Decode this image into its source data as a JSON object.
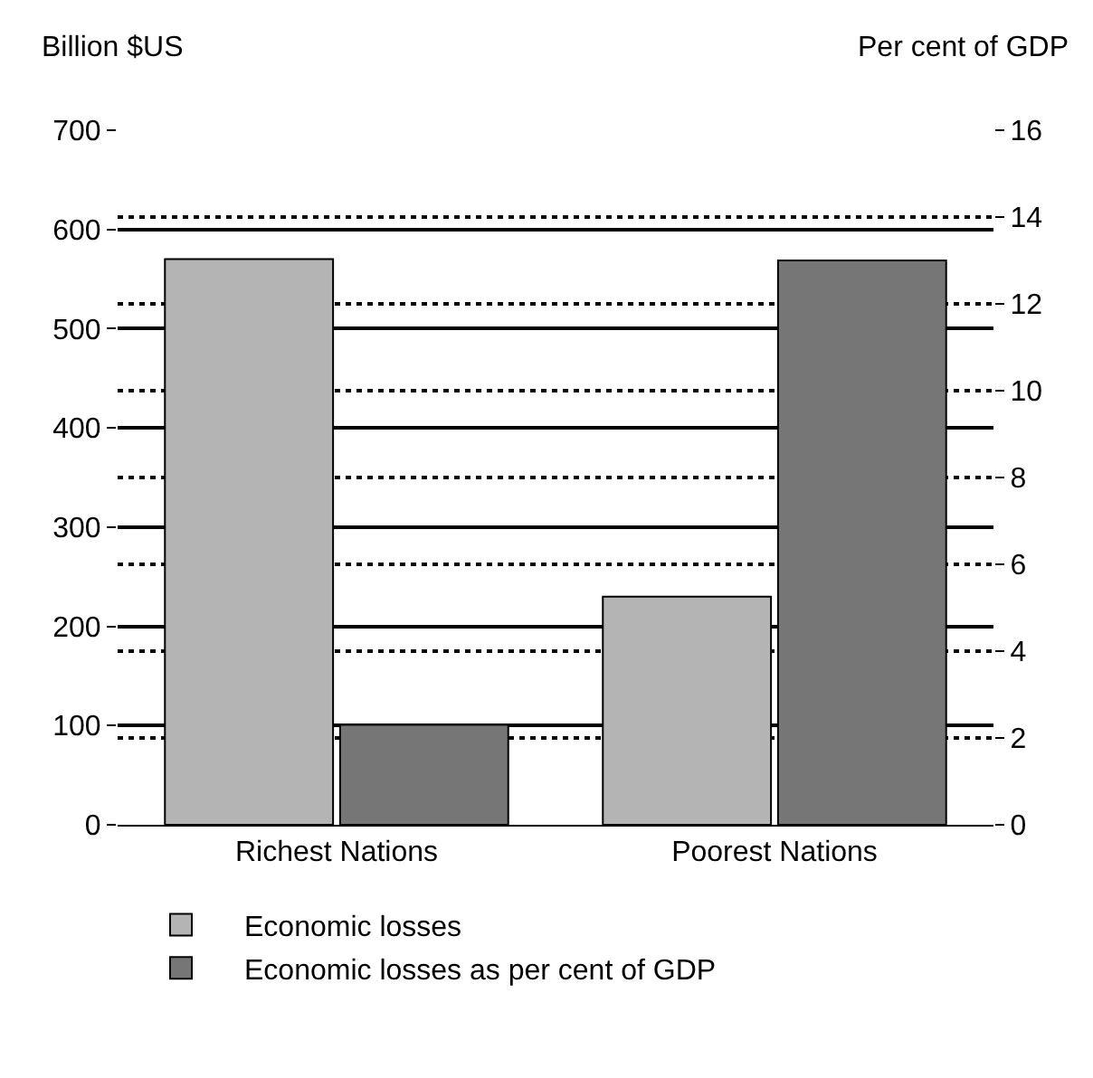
{
  "chart_data": {
    "type": "bar",
    "ylabel": "Billion $US",
    "y2label": "Per cent of GDP",
    "categories": [
      "Richest Nations",
      "Poorest Nations"
    ],
    "series": [
      {
        "name": "Economic losses",
        "color": "#b4b4b4",
        "values": [
          570,
          230
        ]
      },
      {
        "name": "Economic losses as per cent of GDP",
        "color": "#767676",
        "values": [
          2.3,
          13
        ],
        "axis": "y2"
      }
    ],
    "ylim": [
      0,
      700
    ],
    "yticks": [
      0,
      100,
      200,
      300,
      400,
      500,
      600,
      700
    ],
    "y2lim": [
      0,
      16
    ],
    "y2ticks": [
      0,
      2,
      4,
      6,
      8,
      10,
      12,
      14,
      16
    ],
    "grid": true,
    "legend": "bottom"
  }
}
